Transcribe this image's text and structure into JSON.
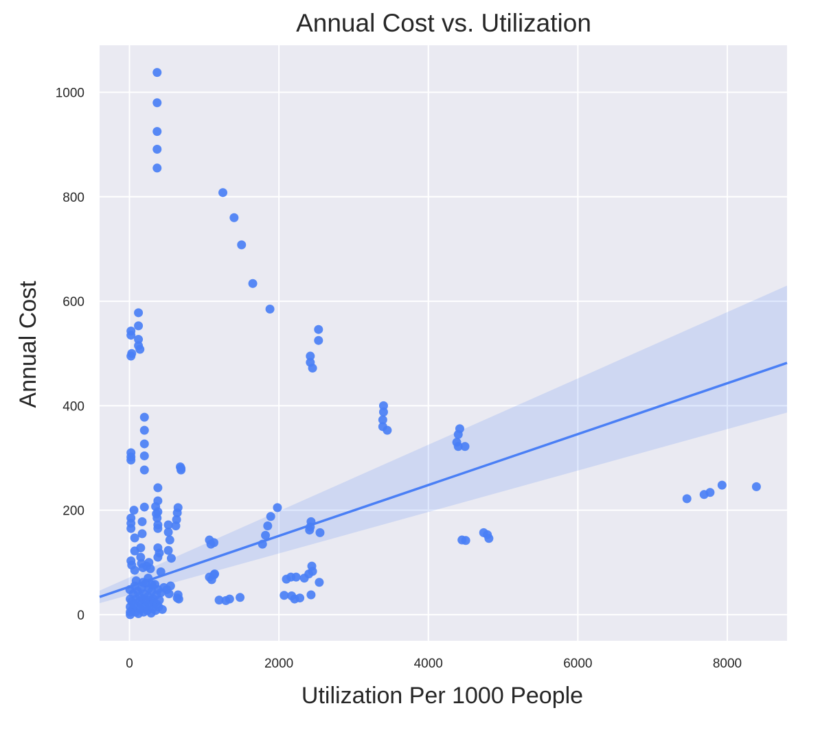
{
  "chart_data": {
    "type": "scatter",
    "title": "Annual Cost vs. Utilization",
    "xlabel": "Utilization Per 1000 People",
    "ylabel": "Annual Cost",
    "xlim": [
      -400,
      8800
    ],
    "ylim": [
      -50,
      1090
    ],
    "xticks": [
      0,
      2000,
      4000,
      6000,
      8000
    ],
    "yticks": [
      0,
      200,
      400,
      600,
      800,
      1000
    ],
    "grid": true,
    "colors": {
      "background": "#eaeaf2",
      "grid": "#ffffff",
      "points": "#4a7ff5"
    },
    "regression": {
      "x": [
        -400,
        8800
      ],
      "y": [
        34,
        482
      ],
      "ci_upper": [
        46,
        630
      ],
      "ci_lower": [
        22,
        387
      ]
    },
    "points": [
      [
        370,
        1038
      ],
      [
        370,
        980
      ],
      [
        370,
        925
      ],
      [
        370,
        891
      ],
      [
        370,
        855
      ],
      [
        1250,
        808
      ],
      [
        1400,
        760
      ],
      [
        1500,
        708
      ],
      [
        1650,
        634
      ],
      [
        1880,
        585
      ],
      [
        120,
        578
      ],
      [
        120,
        553
      ],
      [
        120,
        527
      ],
      [
        120,
        515
      ],
      [
        140,
        508
      ],
      [
        20,
        543
      ],
      [
        20,
        535
      ],
      [
        30,
        500
      ],
      [
        20,
        495
      ],
      [
        2530,
        546
      ],
      [
        2530,
        525
      ],
      [
        2420,
        495
      ],
      [
        2420,
        483
      ],
      [
        2450,
        472
      ],
      [
        3400,
        400
      ],
      [
        3400,
        388
      ],
      [
        3390,
        373
      ],
      [
        3390,
        360
      ],
      [
        3450,
        353
      ],
      [
        4420,
        356
      ],
      [
        4400,
        345
      ],
      [
        4380,
        330
      ],
      [
        4400,
        322
      ],
      [
        4490,
        322
      ],
      [
        200,
        378
      ],
      [
        200,
        353
      ],
      [
        200,
        327
      ],
      [
        200,
        304
      ],
      [
        200,
        277
      ],
      [
        20,
        310
      ],
      [
        20,
        302
      ],
      [
        20,
        296
      ],
      [
        680,
        283
      ],
      [
        690,
        280
      ],
      [
        690,
        277
      ],
      [
        380,
        243
      ],
      [
        380,
        218
      ],
      [
        350,
        207
      ],
      [
        200,
        206
      ],
      [
        60,
        200
      ],
      [
        380,
        197
      ],
      [
        360,
        193
      ],
      [
        370,
        185
      ],
      [
        380,
        172
      ],
      [
        380,
        165
      ],
      [
        650,
        205
      ],
      [
        640,
        195
      ],
      [
        630,
        182
      ],
      [
        620,
        170
      ],
      [
        20,
        185
      ],
      [
        20,
        175
      ],
      [
        20,
        165
      ],
      [
        70,
        147
      ],
      [
        170,
        178
      ],
      [
        170,
        155
      ],
      [
        520,
        172
      ],
      [
        520,
        158
      ],
      [
        540,
        143
      ],
      [
        520,
        123
      ],
      [
        560,
        108
      ],
      [
        1070,
        143
      ],
      [
        1090,
        135
      ],
      [
        1130,
        138
      ],
      [
        1980,
        205
      ],
      [
        1890,
        188
      ],
      [
        1850,
        170
      ],
      [
        1820,
        152
      ],
      [
        1780,
        135
      ],
      [
        2430,
        178
      ],
      [
        2420,
        168
      ],
      [
        2410,
        162
      ],
      [
        2550,
        157
      ],
      [
        4450,
        143
      ],
      [
        4500,
        142
      ],
      [
        4740,
        157
      ],
      [
        4790,
        153
      ],
      [
        4810,
        146
      ],
      [
        7460,
        222
      ],
      [
        7690,
        230
      ],
      [
        7770,
        234
      ],
      [
        7930,
        248
      ],
      [
        8390,
        245
      ],
      [
        20,
        103
      ],
      [
        30,
        95
      ],
      [
        70,
        122
      ],
      [
        70,
        85
      ],
      [
        150,
        128
      ],
      [
        150,
        110
      ],
      [
        160,
        98
      ],
      [
        180,
        90
      ],
      [
        230,
        93
      ],
      [
        260,
        100
      ],
      [
        280,
        88
      ],
      [
        380,
        128
      ],
      [
        400,
        118
      ],
      [
        420,
        82
      ],
      [
        380,
        110
      ],
      [
        1070,
        72
      ],
      [
        1100,
        67
      ],
      [
        1140,
        78
      ],
      [
        1130,
        76
      ],
      [
        2100,
        68
      ],
      [
        2160,
        72
      ],
      [
        2230,
        72
      ],
      [
        2340,
        70
      ],
      [
        2440,
        93
      ],
      [
        2450,
        83
      ],
      [
        2400,
        78
      ],
      [
        2540,
        62
      ],
      [
        1200,
        28
      ],
      [
        1290,
        27
      ],
      [
        1340,
        30
      ],
      [
        1480,
        33
      ],
      [
        2070,
        37
      ],
      [
        2170,
        36
      ],
      [
        2210,
        30
      ],
      [
        2280,
        32
      ],
      [
        2430,
        38
      ],
      [
        650,
        38
      ],
      [
        640,
        32
      ],
      [
        660,
        30
      ],
      [
        550,
        55
      ],
      [
        530,
        40
      ],
      [
        500,
        48
      ],
      [
        5,
        48
      ],
      [
        10,
        30
      ],
      [
        10,
        15
      ],
      [
        10,
        5
      ],
      [
        10,
        0
      ],
      [
        30,
        25
      ],
      [
        40,
        10
      ],
      [
        50,
        40
      ],
      [
        60,
        20
      ],
      [
        70,
        55
      ],
      [
        80,
        5
      ],
      [
        90,
        30
      ],
      [
        100,
        15
      ],
      [
        110,
        45
      ],
      [
        120,
        2
      ],
      [
        130,
        25
      ],
      [
        140,
        35
      ],
      [
        150,
        10
      ],
      [
        160,
        50
      ],
      [
        170,
        20
      ],
      [
        180,
        30
      ],
      [
        190,
        5
      ],
      [
        200,
        40
      ],
      [
        210,
        15
      ],
      [
        220,
        60
      ],
      [
        230,
        25
      ],
      [
        240,
        8
      ],
      [
        250,
        35
      ],
      [
        260,
        50
      ],
      [
        270,
        18
      ],
      [
        280,
        28
      ],
      [
        290,
        3
      ],
      [
        300,
        45
      ],
      [
        310,
        12
      ],
      [
        320,
        30
      ],
      [
        330,
        22
      ],
      [
        340,
        58
      ],
      [
        350,
        8
      ],
      [
        360,
        38
      ],
      [
        370,
        20
      ],
      [
        380,
        48
      ],
      [
        390,
        15
      ],
      [
        400,
        28
      ],
      [
        420,
        42
      ],
      [
        440,
        10
      ],
      [
        460,
        52
      ],
      [
        250,
        70
      ],
      [
        180,
        62
      ],
      [
        90,
        65
      ],
      [
        300,
        58
      ]
    ]
  }
}
